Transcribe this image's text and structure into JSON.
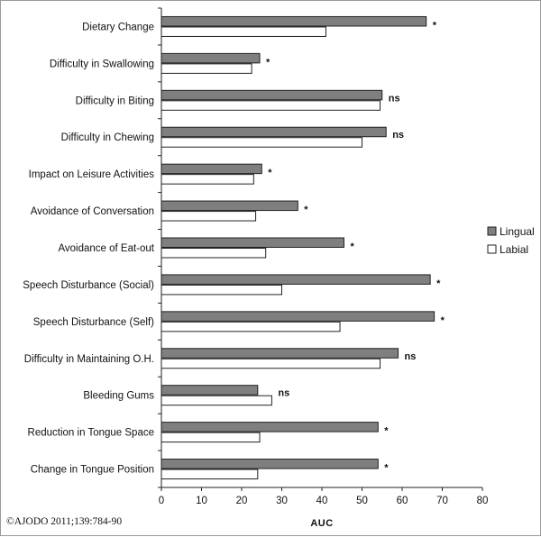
{
  "chart_data": {
    "type": "bar",
    "orientation": "horizontal",
    "categories": [
      "Dietary Change",
      "Difficulty in Swallowing",
      "Difficulty in Biting",
      "Difficulty in Chewing",
      "Impact on Leisure Activities",
      "Avoidance of Conversation",
      "Avoidance of Eat-out",
      "Speech Disturbance (Social)",
      "Speech Disturbance (Self)",
      "Difficulty in Maintaining O.H.",
      "Bleeding Gums",
      "Reduction in Tongue Space",
      "Change in Tongue Position"
    ],
    "series": [
      {
        "name": "Lingual",
        "color": "#7f7f7f",
        "values": [
          66,
          24.5,
          55,
          56,
          25,
          34,
          45.5,
          67,
          68,
          59,
          24,
          54,
          54
        ]
      },
      {
        "name": "Labial",
        "color": "#ffffff",
        "values": [
          41,
          22.5,
          54.5,
          50,
          23,
          23.5,
          26,
          30,
          44.5,
          54.5,
          27.5,
          24.5,
          24
        ]
      }
    ],
    "significance": [
      "*",
      "*",
      "ns",
      "ns",
      "*",
      "*",
      "*",
      "*",
      "*",
      "ns",
      "ns",
      "*",
      "*"
    ],
    "xlabel": "AUC",
    "xlim": [
      0,
      80
    ],
    "xticks": [
      0,
      10,
      20,
      30,
      40,
      50,
      60,
      70,
      80
    ],
    "grid": false,
    "legend_position": "right"
  },
  "copyright": "©AJODO 2011;139:784-90"
}
